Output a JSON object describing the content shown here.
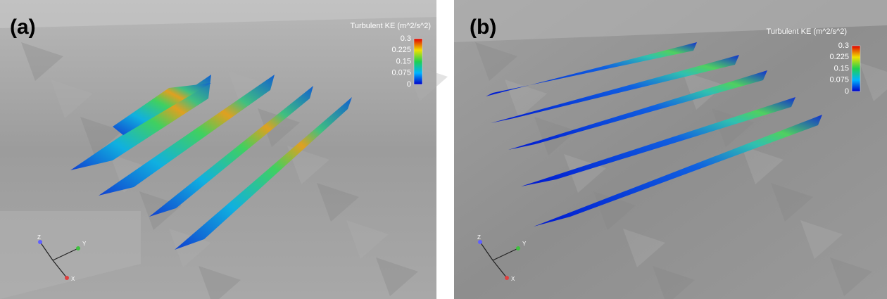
{
  "panels": [
    {
      "label": "(a)",
      "colorbar": {
        "title": "Turbulent KE (m^2/s^2)",
        "ticks": [
          "0.3",
          "0.225",
          "0.15",
          "0.075",
          "0"
        ]
      },
      "axes": [
        "Z",
        "Y",
        "X"
      ]
    },
    {
      "label": "(b)",
      "colorbar": {
        "title": "Turbulent KE (m^2/s^2)",
        "ticks": [
          "0.3",
          "0.225",
          "0.15",
          "0.075",
          "0"
        ]
      },
      "axes": [
        "Z",
        "Y",
        "X"
      ]
    }
  ]
}
